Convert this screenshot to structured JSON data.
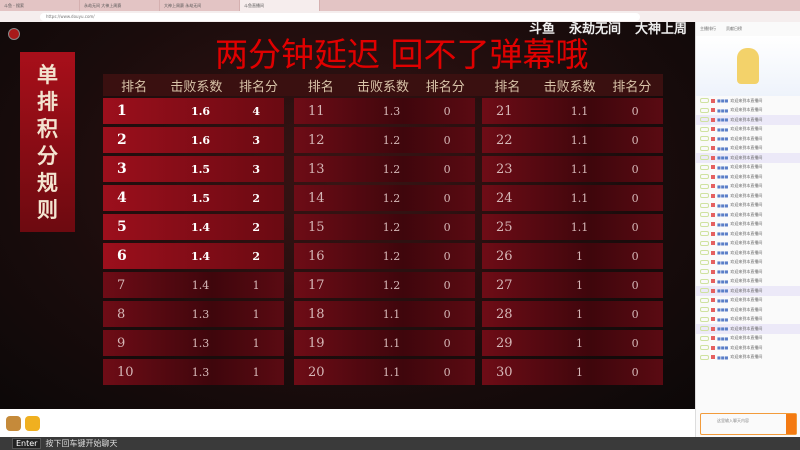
{
  "browser": {
    "tabs": [
      "斗鱼 - 搜索",
      "永劫无间 大神上周赛",
      "大神上周赛 永劫无间",
      "斗鱼直播间"
    ],
    "url": "https://www.douyu.com/"
  },
  "overlay": {
    "title": "两分钟延迟 回不了弹幕哦",
    "banner": [
      "单",
      "排",
      "积",
      "分",
      "规",
      "则"
    ],
    "logos": [
      "斗鱼",
      "永劫无间",
      "大神上周"
    ]
  },
  "table": {
    "headers": [
      "排名",
      "击败系数",
      "排名分",
      "排名",
      "击败系数",
      "排名分",
      "排名",
      "击败系数",
      "排名分"
    ],
    "rows": [
      [
        "1",
        "1.6",
        "4"
      ],
      [
        "2",
        "1.6",
        "3"
      ],
      [
        "3",
        "1.5",
        "3"
      ],
      [
        "4",
        "1.5",
        "2"
      ],
      [
        "5",
        "1.4",
        "2"
      ],
      [
        "6",
        "1.4",
        "2"
      ],
      [
        "7",
        "1.4",
        "1"
      ],
      [
        "8",
        "1.3",
        "1"
      ],
      [
        "9",
        "1.3",
        "1"
      ],
      [
        "10",
        "1.3",
        "1"
      ],
      [
        "11",
        "1.3",
        "0"
      ],
      [
        "12",
        "1.2",
        "0"
      ],
      [
        "13",
        "1.2",
        "0"
      ],
      [
        "14",
        "1.2",
        "0"
      ],
      [
        "15",
        "1.2",
        "0"
      ],
      [
        "16",
        "1.2",
        "0"
      ],
      [
        "17",
        "1.2",
        "0"
      ],
      [
        "18",
        "1.1",
        "0"
      ],
      [
        "19",
        "1.1",
        "0"
      ],
      [
        "20",
        "1.1",
        "0"
      ],
      [
        "21",
        "1.1",
        "0"
      ],
      [
        "22",
        "1.1",
        "0"
      ],
      [
        "23",
        "1.1",
        "0"
      ],
      [
        "24",
        "1.1",
        "0"
      ],
      [
        "25",
        "1.1",
        "0"
      ],
      [
        "26",
        "1",
        "0"
      ],
      [
        "27",
        "1",
        "0"
      ],
      [
        "28",
        "1",
        "0"
      ],
      [
        "29",
        "1",
        "0"
      ],
      [
        "30",
        "1",
        "0"
      ]
    ]
  },
  "chat": {
    "header": [
      "主播排行",
      "贡献日榜"
    ],
    "welcome": "欢迎来到本直播间",
    "input_placeholder": "这里输入聊天内容",
    "send": "发送"
  },
  "bottom": {
    "key": "Enter",
    "hint": "按下回车键开始聊天"
  }
}
